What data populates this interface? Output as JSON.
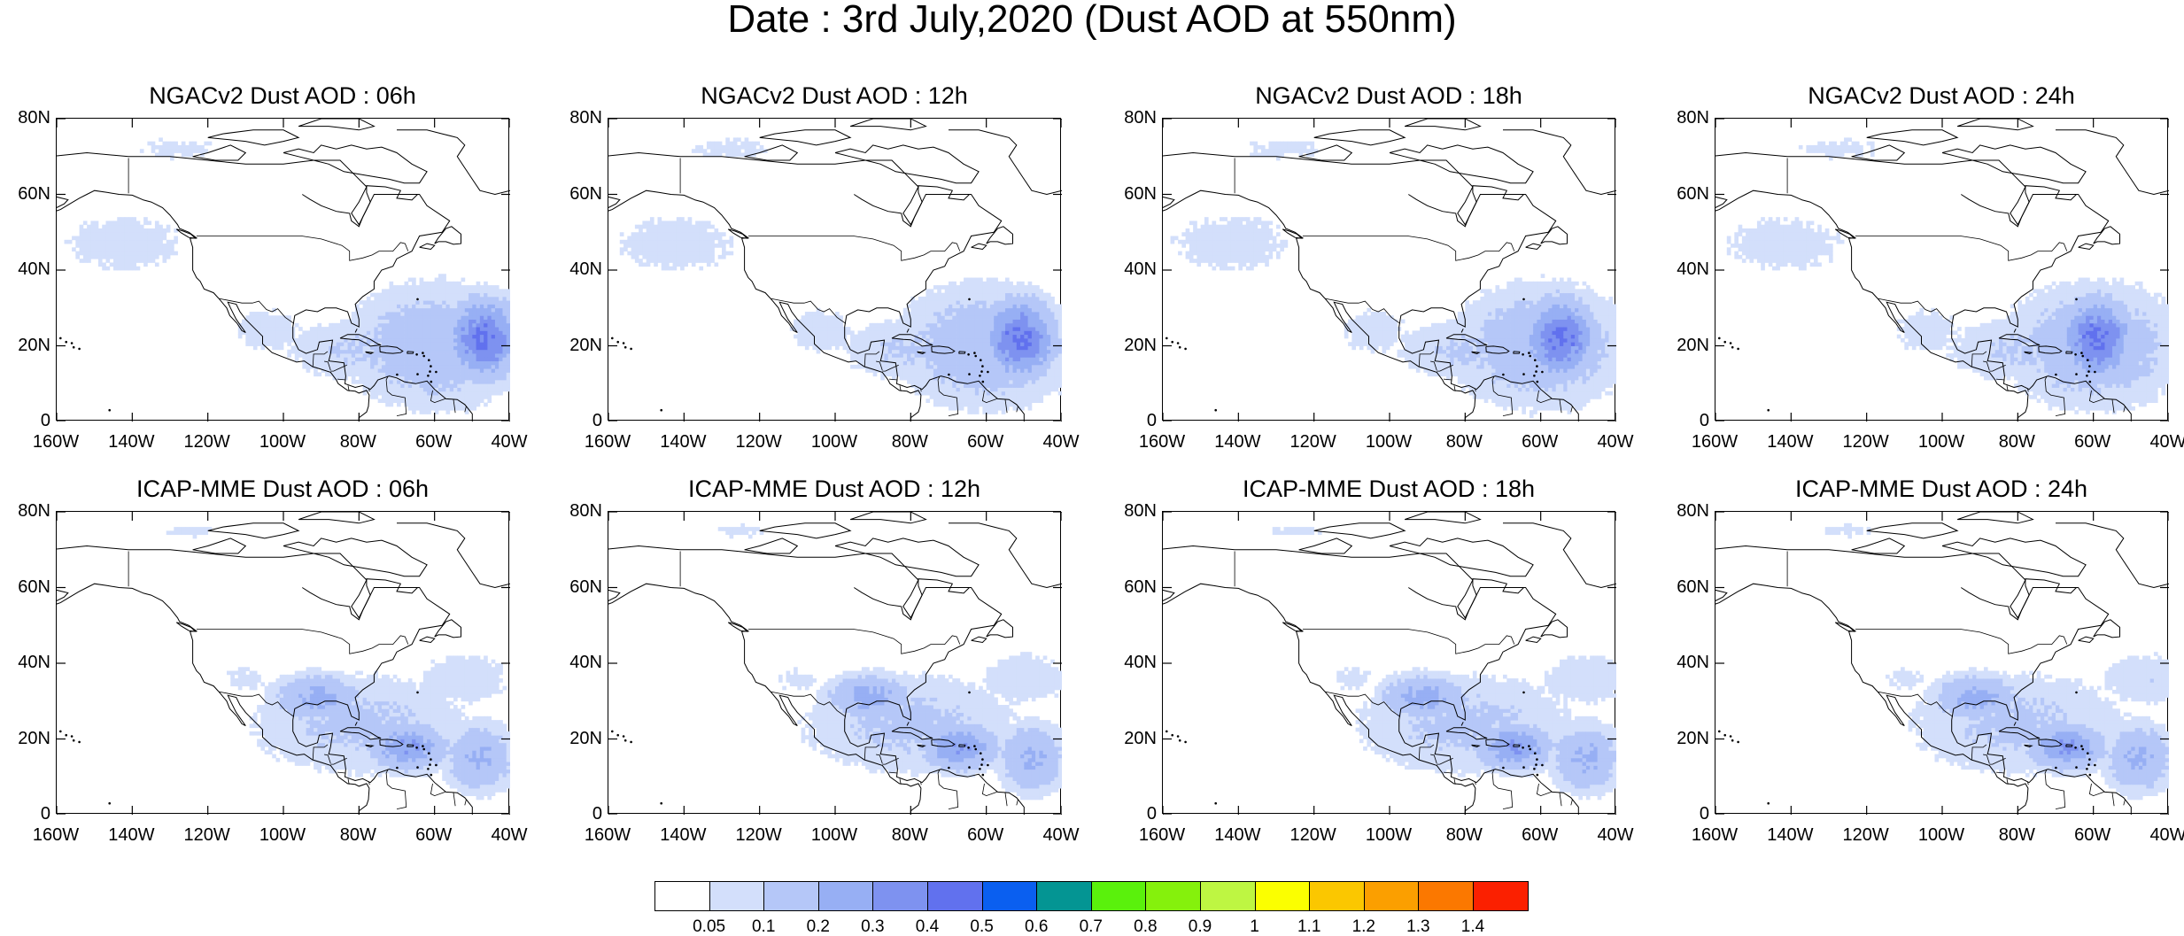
{
  "title": "Date : 3rd July,2020 (Dust AOD at 550nm)",
  "panels": [
    {
      "title": "NGACv2 Dust AOD : 06h",
      "model": "NGAC"
    },
    {
      "title": "NGACv2 Dust AOD : 12h",
      "model": "NGAC"
    },
    {
      "title": "NGACv2 Dust AOD : 18h",
      "model": "NGAC"
    },
    {
      "title": "NGACv2 Dust AOD : 24h",
      "model": "NGAC"
    },
    {
      "title": "ICAP-MME Dust AOD : 06h",
      "model": "ICAP"
    },
    {
      "title": "ICAP-MME Dust AOD : 12h",
      "model": "ICAP"
    },
    {
      "title": "ICAP-MME Dust AOD : 18h",
      "model": "ICAP"
    },
    {
      "title": "ICAP-MME Dust AOD : 24h",
      "model": "ICAP"
    }
  ],
  "axes": {
    "lat_labels": [
      "80N",
      "60N",
      "40N",
      "20N",
      "0"
    ],
    "lon_labels": [
      "160W",
      "140W",
      "120W",
      "100W",
      "80W",
      "60W",
      "40W"
    ]
  },
  "colorbar": {
    "labels": [
      "0.05",
      "0.1",
      "0.2",
      "0.3",
      "0.4",
      "0.5",
      "0.6",
      "0.7",
      "0.8",
      "0.9",
      "1",
      "1.1",
      "1.2",
      "1.3",
      "1.4"
    ],
    "colors": [
      "#ffffff",
      "#d3dffb",
      "#b5c7f8",
      "#97aff4",
      "#7e92f0",
      "#6171ee",
      "#0a5ff0",
      "#049593",
      "#5af10c",
      "#85f10c",
      "#bef642",
      "#fbff00",
      "#fbc700",
      "#fb9f00",
      "#fb7800",
      "#fb2000"
    ]
  }
}
